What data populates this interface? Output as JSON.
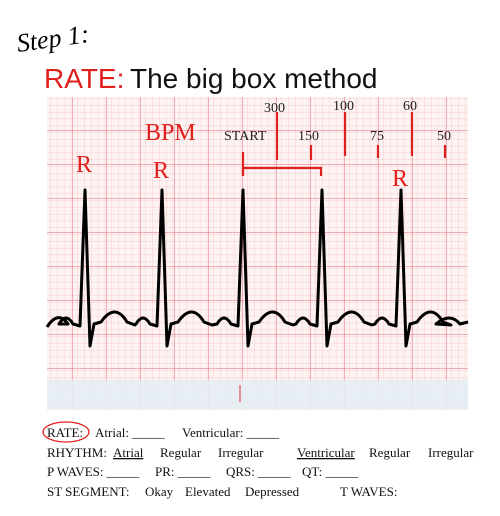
{
  "header": {
    "step": "Step 1:",
    "rate_label": "RATE:",
    "title": "The big box method"
  },
  "diagram": {
    "bpm_label": "BPM",
    "start_label": "START",
    "markers": [
      300,
      150,
      100,
      75,
      60,
      50
    ],
    "r_labels": [
      "R",
      "R",
      "R"
    ]
  },
  "worksheet": {
    "row1": [
      "RATE:",
      "Atrial: _____",
      "Ventricular: _____"
    ],
    "row2": [
      "RHYTHM:",
      "Atrial",
      "Regular",
      "Irregular",
      "Ventricular",
      "Regular",
      "Irregular"
    ],
    "row3": [
      "P WAVES: _____",
      "PR: _____",
      "QRS: _____",
      "QT: _____"
    ],
    "row4": [
      "ST SEGMENT:",
      "Okay",
      "Elevated",
      "Depressed",
      "T WAVES:"
    ]
  }
}
